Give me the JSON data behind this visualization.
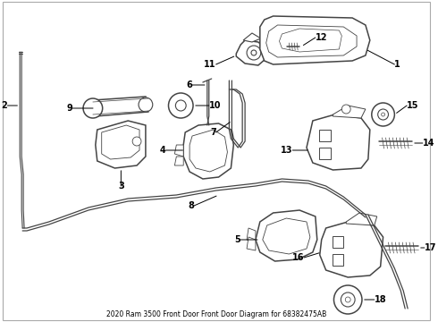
{
  "title": "2020 Ram 3500 Front Door Front Door Diagram for 68382475AB",
  "bg_color": "#ffffff",
  "line_color": "#444444",
  "fig_width": 4.9,
  "fig_height": 3.6,
  "dpi": 100,
  "border_color": "#cccccc",
  "label_fontsize": 7,
  "label_fontweight": "bold"
}
